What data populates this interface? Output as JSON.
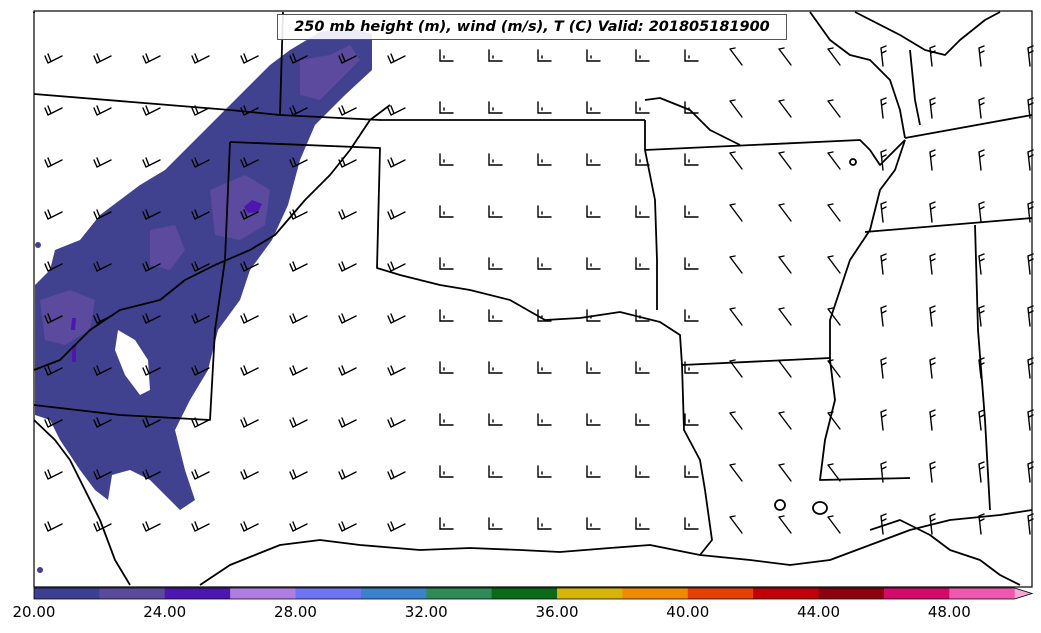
{
  "title": "250 mb height (m), wind (m/s), T (C) Valid: 201805181900",
  "colorbar": {
    "ticks": [
      "20.00",
      "24.00",
      "28.00",
      "32.00",
      "36.00",
      "40.00",
      "44.00",
      "48.00"
    ],
    "tick_values": [
      20,
      24,
      28,
      32,
      36,
      40,
      44,
      48
    ],
    "min": 20,
    "max": 52,
    "step": 2,
    "extend": "max",
    "colors": [
      "#3d3f94",
      "#5a4a9c",
      "#4e16b0",
      "#b07ee0",
      "#6f74f2",
      "#3b82cc",
      "#2e8b57",
      "#0a6a18",
      "#d8b30a",
      "#f08a00",
      "#e44000",
      "#c00008",
      "#8c0010",
      "#d40a6a",
      "#f058b0",
      "#f4a8d4"
    ]
  },
  "map": {
    "region": "South-Central United States",
    "boundaries": "state lines and coastline",
    "shaded_field": "wind speed",
    "shaded_color_region": "#40428f",
    "barbs": "wind barbs on regular grid"
  }
}
